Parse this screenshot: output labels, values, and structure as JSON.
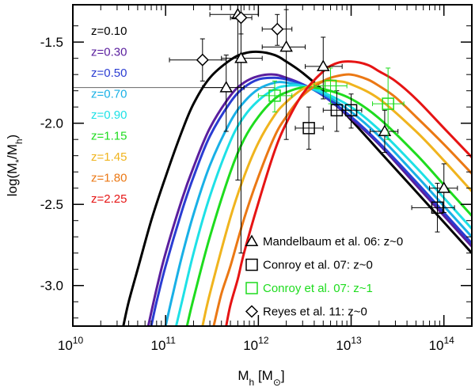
{
  "chart_data": {
    "type": "line",
    "xlabel_main": "M",
    "xlabel_sub": "h",
    "xlabel_unit_open": " [M",
    "xlabel_unit_sub": "⊙",
    "xlabel_unit_close": "]",
    "ylabel_open": "log(M",
    "ylabel_sub1": "*",
    "ylabel_mid": "/M",
    "ylabel_sub2": "h",
    "ylabel_close": ")",
    "x_scale": "log",
    "xlim": [
      10000000000.0,
      200000000000000.0
    ],
    "ylim": [
      -3.25,
      -1.27
    ],
    "x_ticks": [
      {
        "value": 10000000000.0,
        "base": "10",
        "exp": "10"
      },
      {
        "value": 100000000000.0,
        "base": "10",
        "exp": "11"
      },
      {
        "value": 1000000000000.0,
        "base": "10",
        "exp": "12"
      },
      {
        "value": 10000000000000.0,
        "base": "10",
        "exp": "13"
      },
      {
        "value": 100000000000000.0,
        "base": "10",
        "exp": "14"
      }
    ],
    "y_ticks": [
      {
        "value": -1.5,
        "label": "-1.5"
      },
      {
        "value": -2.0,
        "label": "-2.0"
      },
      {
        "value": -2.5,
        "label": "-2.5"
      },
      {
        "value": -3.0,
        "label": "-3.0"
      }
    ],
    "reference_line_y": -1.78,
    "series": [
      {
        "name": "z=0.10",
        "color": "#000000",
        "x": [
          35000000000.0,
          40000000000.0,
          50000000000.0,
          70000000000.0,
          100000000000.0,
          150000000000.0,
          200000000000.0,
          300000000000.0,
          500000000000.0,
          700000000000.0,
          1000000000000.0,
          1500000000000.0,
          2000000000000.0,
          3000000000000.0,
          5000000000000.0,
          10000000000000.0,
          20000000000000.0,
          50000000000000.0,
          100000000000000.0,
          200000000000000.0
        ],
        "y": [
          -3.25,
          -3.1,
          -2.9,
          -2.6,
          -2.33,
          -2.05,
          -1.88,
          -1.72,
          -1.61,
          -1.57,
          -1.56,
          -1.58,
          -1.62,
          -1.69,
          -1.8,
          -1.98,
          -2.17,
          -2.42,
          -2.61,
          -2.8
        ]
      },
      {
        "name": "z=0.30",
        "color": "#5a1e9e",
        "x": [
          65000000000.0,
          80000000000.0,
          100000000000.0,
          150000000000.0,
          200000000000.0,
          300000000000.0,
          500000000000.0,
          700000000000.0,
          1000000000000.0,
          1500000000000.0,
          2000000000000.0,
          3000000000000.0,
          5000000000000.0,
          10000000000000.0,
          20000000000000.0,
          50000000000000.0,
          100000000000000.0,
          200000000000000.0
        ],
        "y": [
          -3.25,
          -3.02,
          -2.8,
          -2.47,
          -2.27,
          -2.03,
          -1.83,
          -1.75,
          -1.71,
          -1.7,
          -1.72,
          -1.76,
          -1.83,
          -1.97,
          -2.13,
          -2.38,
          -2.57,
          -2.76
        ]
      },
      {
        "name": "z=0.50",
        "color": "#2a3cd2",
        "x": [
          70000000000.0,
          80000000000.0,
          100000000000.0,
          150000000000.0,
          200000000000.0,
          300000000000.0,
          500000000000.0,
          700000000000.0,
          1000000000000.0,
          1500000000000.0,
          2000000000000.0,
          3000000000000.0,
          5000000000000.0,
          10000000000000.0,
          20000000000000.0,
          50000000000000.0,
          100000000000000.0,
          200000000000000.0
        ],
        "y": [
          -3.25,
          -3.1,
          -2.88,
          -2.54,
          -2.33,
          -2.08,
          -1.87,
          -1.78,
          -1.73,
          -1.72,
          -1.73,
          -1.76,
          -1.83,
          -1.96,
          -2.12,
          -2.36,
          -2.55,
          -2.74
        ]
      },
      {
        "name": "z=0.70",
        "color": "#19b0e6",
        "x": [
          100000000000.0,
          120000000000.0,
          150000000000.0,
          200000000000.0,
          300000000000.0,
          500000000000.0,
          700000000000.0,
          1000000000000.0,
          1500000000000.0,
          2000000000000.0,
          3000000000000.0,
          5000000000000.0,
          10000000000000.0,
          20000000000000.0,
          50000000000000.0,
          100000000000000.0,
          200000000000000.0
        ],
        "y": [
          -3.25,
          -3.05,
          -2.82,
          -2.56,
          -2.26,
          -1.99,
          -1.87,
          -1.79,
          -1.75,
          -1.75,
          -1.77,
          -1.82,
          -1.93,
          -2.08,
          -2.32,
          -2.51,
          -2.7
        ]
      },
      {
        "name": "z=0.90",
        "color": "#1ee1e6",
        "x": [
          130000000000.0,
          150000000000.0,
          200000000000.0,
          300000000000.0,
          500000000000.0,
          700000000000.0,
          1000000000000.0,
          1500000000000.0,
          2000000000000.0,
          3000000000000.0,
          5000000000000.0,
          10000000000000.0,
          20000000000000.0,
          50000000000000.0,
          100000000000000.0,
          200000000000000.0
        ],
        "y": [
          -3.25,
          -3.1,
          -2.8,
          -2.45,
          -2.11,
          -1.96,
          -1.86,
          -1.79,
          -1.77,
          -1.77,
          -1.81,
          -1.9,
          -2.04,
          -2.27,
          -2.46,
          -2.65
        ]
      },
      {
        "name": "z=1.15",
        "color": "#1edc1e",
        "x": [
          170000000000.0,
          200000000000.0,
          300000000000.0,
          500000000000.0,
          700000000000.0,
          1000000000000.0,
          1500000000000.0,
          2000000000000.0,
          3000000000000.0,
          5000000000000.0,
          10000000000000.0,
          20000000000000.0,
          50000000000000.0,
          100000000000000.0,
          200000000000000.0
        ],
        "y": [
          -3.25,
          -3.08,
          -2.7,
          -2.3,
          -2.1,
          -1.96,
          -1.85,
          -1.81,
          -1.78,
          -1.79,
          -1.85,
          -1.97,
          -2.19,
          -2.38,
          -2.57
        ]
      },
      {
        "name": "z=1.45",
        "color": "#f0b41e",
        "x": [
          250000000000.0,
          300000000000.0,
          500000000000.0,
          700000000000.0,
          1000000000000.0,
          1500000000000.0,
          2000000000000.0,
          3000000000000.0,
          5000000000000.0,
          7000000000000.0,
          10000000000000.0,
          20000000000000.0,
          50000000000000.0,
          100000000000000.0,
          200000000000000.0
        ],
        "y": [
          -3.25,
          -3.05,
          -2.58,
          -2.33,
          -2.12,
          -1.95,
          -1.87,
          -1.79,
          -1.74,
          -1.74,
          -1.76,
          -1.85,
          -2.05,
          -2.23,
          -2.42
        ]
      },
      {
        "name": "z=1.80",
        "color": "#eb7814",
        "x": [
          330000000000.0,
          400000000000.0,
          500000000000.0,
          700000000000.0,
          1000000000000.0,
          1500000000000.0,
          2000000000000.0,
          3000000000000.0,
          5000000000000.0,
          7000000000000.0,
          10000000000000.0,
          15000000000000.0,
          20000000000000.0,
          30000000000000.0,
          50000000000000.0,
          100000000000000.0,
          200000000000000.0
        ],
        "y": [
          -3.25,
          -3.05,
          -2.88,
          -2.59,
          -2.33,
          -2.08,
          -1.96,
          -1.83,
          -1.74,
          -1.71,
          -1.7,
          -1.73,
          -1.77,
          -1.84,
          -1.96,
          -2.13,
          -2.31
        ]
      },
      {
        "name": "z=2.25",
        "color": "#e61414",
        "x": [
          450000000000.0,
          500000000000.0,
          600000000000.0,
          700000000000.0,
          1000000000000.0,
          1500000000000.0,
          2000000000000.0,
          3000000000000.0,
          5000000000000.0,
          7000000000000.0,
          10000000000000.0,
          15000000000000.0,
          20000000000000.0,
          30000000000000.0,
          50000000000000.0,
          100000000000000.0,
          200000000000000.0
        ],
        "y": [
          -3.25,
          -3.12,
          -2.96,
          -2.8,
          -2.49,
          -2.17,
          -2.0,
          -1.82,
          -1.68,
          -1.63,
          -1.62,
          -1.64,
          -1.68,
          -1.74,
          -1.85,
          -2.03,
          -2.21
        ]
      }
    ],
    "observations": [
      {
        "name": "Mandelbaum et al. 06: z~0",
        "marker": "triangle",
        "color": "#000000",
        "points": [
          {
            "x": 450000000000.0,
            "y": -1.78,
            "xlo": 250000000000.0,
            "xhi": 700000000000.0,
            "ylo": -2.05,
            "yhi": -1.58
          },
          {
            "x": 600000000000.0,
            "y": -1.33,
            "xlo": 300000000000.0,
            "xhi": 1000000000000.0,
            "ylo": -2.35,
            "yhi": -1.27
          },
          {
            "x": 650000000000.0,
            "y": -1.6,
            "xlo": 400000000000.0,
            "xhi": 1100000000000.0,
            "ylo": -2.8,
            "yhi": -1.35
          },
          {
            "x": 2000000000000.0,
            "y": -1.53,
            "xlo": 1100000000000.0,
            "xhi": 3200000000000.0,
            "ylo": -2.1,
            "yhi": -1.3
          },
          {
            "x": 5000000000000.0,
            "y": -1.65,
            "xlo": 3200000000000.0,
            "xhi": 8000000000000.0,
            "ylo": -1.85,
            "yhi": -1.47
          },
          {
            "x": 23000000000000.0,
            "y": -2.05,
            "xlo": 16000000000000.0,
            "xhi": 32000000000000.0,
            "ylo": -2.18,
            "yhi": -1.92
          },
          {
            "x": 100000000000000.0,
            "y": -2.4,
            "xlo": 70000000000000.0,
            "xhi": 140000000000000.0,
            "ylo": -2.55,
            "yhi": -2.25
          }
        ]
      },
      {
        "name": "Conroy et al. 07: z~0",
        "marker": "square",
        "color": "#000000",
        "points": [
          {
            "x": 3500000000000.0,
            "y": -2.03,
            "xlo": 2500000000000.0,
            "xhi": 5000000000000.0,
            "ylo": -2.16,
            "yhi": -1.9
          },
          {
            "x": 7000000000000.0,
            "y": -1.92,
            "xlo": 5000000000000.0,
            "xhi": 10000000000000.0,
            "ylo": -2.05,
            "yhi": -1.8
          },
          {
            "x": 10000000000000.0,
            "y": -1.92,
            "xlo": 8000000000000.0,
            "xhi": 13000000000000.0,
            "ylo": -2.03,
            "yhi": -1.82
          },
          {
            "x": 85000000000000.0,
            "y": -2.52,
            "xlo": 45000000000000.0,
            "xhi": 130000000000000.0,
            "ylo": -2.67,
            "yhi": -2.37
          }
        ]
      },
      {
        "name": "Conroy et al. 07: z~1",
        "marker": "square",
        "color": "#1edc1e",
        "points": [
          {
            "x": 1500000000000.0,
            "y": -1.83,
            "xlo": 1000000000000.0,
            "xhi": 2300000000000.0,
            "ylo": -1.93,
            "yhi": -1.74
          },
          {
            "x": 6000000000000.0,
            "y": -1.77,
            "xlo": 4000000000000.0,
            "xhi": 9000000000000.0,
            "ylo": -1.88,
            "yhi": -1.66
          },
          {
            "x": 25000000000000.0,
            "y": -1.88,
            "xlo": 17000000000000.0,
            "xhi": 37000000000000.0,
            "ylo": -2.1,
            "yhi": -1.66
          }
        ]
      },
      {
        "name": "Reyes et al. 11: z~0",
        "marker": "diamond",
        "color": "#000000",
        "points": [
          {
            "x": 250000000000.0,
            "y": -1.61,
            "xlo": 110000000000.0,
            "xhi": 450000000000.0,
            "ylo": -1.74,
            "yhi": -1.48
          },
          {
            "x": 650000000000.0,
            "y": -1.35,
            "xlo": 500000000000.0,
            "xhi": 850000000000.0,
            "ylo": -1.45,
            "yhi": -1.26
          },
          {
            "x": 1600000000000.0,
            "y": -1.42,
            "xlo": 1100000000000.0,
            "xhi": 2300000000000.0,
            "ylo": -1.52,
            "yhi": -1.33
          }
        ]
      }
    ]
  }
}
